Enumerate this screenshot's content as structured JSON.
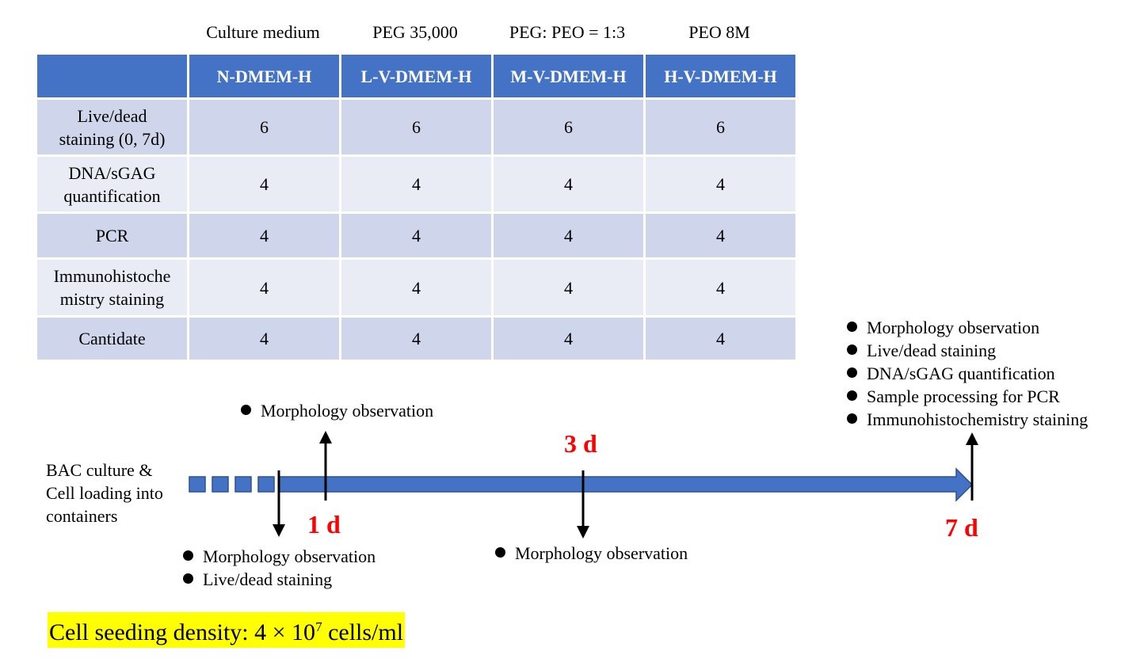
{
  "column_notes": [
    "Culture medium",
    "PEG 35,000",
    "PEG: PEO = 1:3",
    "PEO 8M"
  ],
  "table": {
    "headers": [
      "",
      "N-DMEM-H",
      "L-V-DMEM-H",
      "M-V-DMEM-H",
      "H-V-DMEM-H"
    ],
    "rows": [
      {
        "label_lines": [
          "Live/dead",
          "staining (0, 7d)"
        ],
        "values": [
          "6",
          "6",
          "6",
          "6"
        ]
      },
      {
        "label_lines": [
          "DNA/sGAG",
          "quantification"
        ],
        "values": [
          "4",
          "4",
          "4",
          "4"
        ]
      },
      {
        "label_lines": [
          "PCR"
        ],
        "values": [
          "4",
          "4",
          "4",
          "4"
        ]
      },
      {
        "label_lines": [
          "Immunohistoche",
          "mistry staining"
        ],
        "values": [
          "4",
          "4",
          "4",
          "4"
        ]
      },
      {
        "label_lines": [
          "Cantidate"
        ],
        "values": [
          "4",
          "4",
          "4",
          "4"
        ]
      }
    ],
    "colors": {
      "header_bg": "#4472c4",
      "row_odd": "#cfd5ea",
      "row_even": "#e9ebf5"
    }
  },
  "timeline": {
    "start_label_lines": [
      "BAC culture &",
      "Cell loading into",
      "containers"
    ],
    "arrow_color": "#4472c4",
    "day_label_color": "#ff0000",
    "days": [
      {
        "label": "1 d"
      },
      {
        "label": "3 d"
      },
      {
        "label": "7 d"
      }
    ],
    "events": {
      "day0": [
        "Morphology observation",
        "Live/dead staining"
      ],
      "day1": [
        "Morphology observation"
      ],
      "day3": [
        "Morphology observation"
      ],
      "day7": [
        "Morphology observation",
        "Live/dead staining",
        "DNA/sGAG quantification",
        "Sample processing for PCR",
        "Immunohistochemistry staining"
      ]
    }
  },
  "density": {
    "prefix": "Cell seeding density: 4 × 10",
    "exponent": "7",
    "suffix": " cells/ml",
    "highlight_color": "#ffff00"
  }
}
